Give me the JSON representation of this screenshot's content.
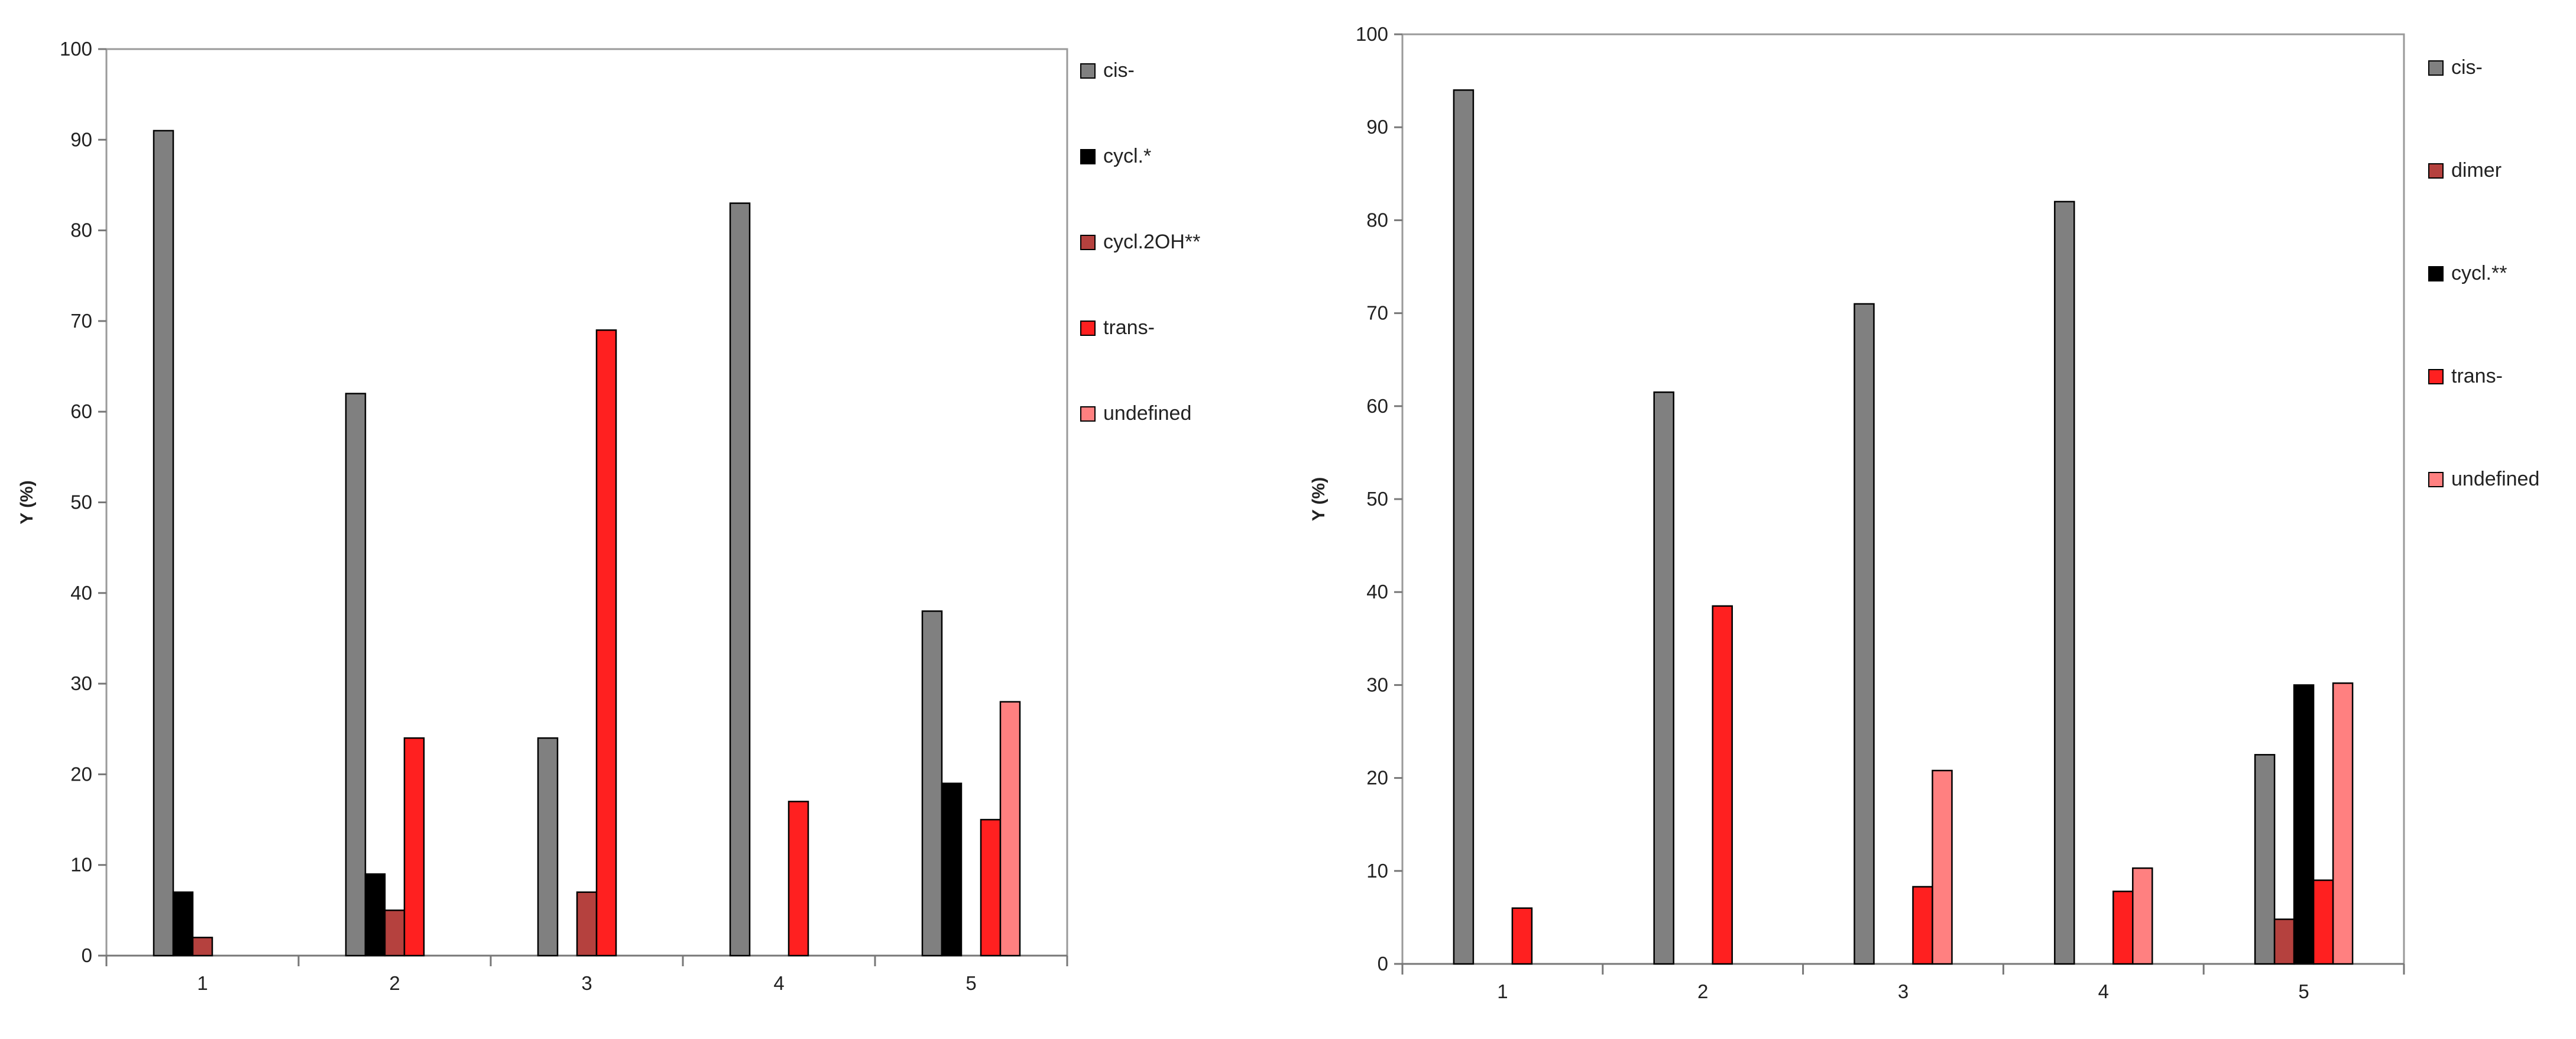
{
  "charts": [
    {
      "type": "bar",
      "ylabel": "Y (%)",
      "ylim": [
        0,
        100
      ],
      "yticks": [
        0,
        10,
        20,
        30,
        40,
        50,
        60,
        70,
        80,
        90,
        100
      ],
      "categories": [
        "1",
        "2",
        "3",
        "4",
        "5"
      ],
      "legend_position": "right",
      "grid": false,
      "series": [
        {
          "name": "cis-",
          "color": "#808080",
          "values": [
            91,
            62,
            24,
            83,
            38
          ]
        },
        {
          "name": "cycl.*",
          "color": "#000000",
          "values": [
            7,
            9,
            0,
            0,
            19
          ]
        },
        {
          "name": "cycl.2OH**",
          "color": "#b5413e",
          "values": [
            2,
            5,
            7,
            0,
            0
          ]
        },
        {
          "name": "trans-",
          "color": "#ff2020",
          "values": [
            0,
            24,
            69,
            17,
            15
          ]
        },
        {
          "name": "undefined",
          "color": "#ff8080",
          "values": [
            0,
            0,
            0,
            0,
            28
          ]
        }
      ]
    },
    {
      "type": "bar",
      "ylabel": "Y (%)",
      "ylim": [
        0,
        100
      ],
      "yticks": [
        0,
        10,
        20,
        30,
        40,
        50,
        60,
        70,
        80,
        90,
        100
      ],
      "categories": [
        "1",
        "2",
        "3",
        "4",
        "5"
      ],
      "legend_position": "right",
      "grid": false,
      "series": [
        {
          "name": "cis-",
          "color": "#808080",
          "values": [
            94,
            61.5,
            71,
            82,
            22.5
          ]
        },
        {
          "name": "dimer",
          "color": "#b5413e",
          "values": [
            0,
            0,
            0,
            0,
            4.8
          ]
        },
        {
          "name": "cycl.**",
          "color": "#000000",
          "values": [
            0,
            0,
            0,
            0,
            30
          ]
        },
        {
          "name": "trans-",
          "color": "#ff2020",
          "values": [
            6,
            38.5,
            8.3,
            7.8,
            9
          ]
        },
        {
          "name": "undefined",
          "color": "#ff8080",
          "values": [
            0,
            0,
            20.8,
            10.3,
            30.2
          ]
        }
      ]
    }
  ]
}
